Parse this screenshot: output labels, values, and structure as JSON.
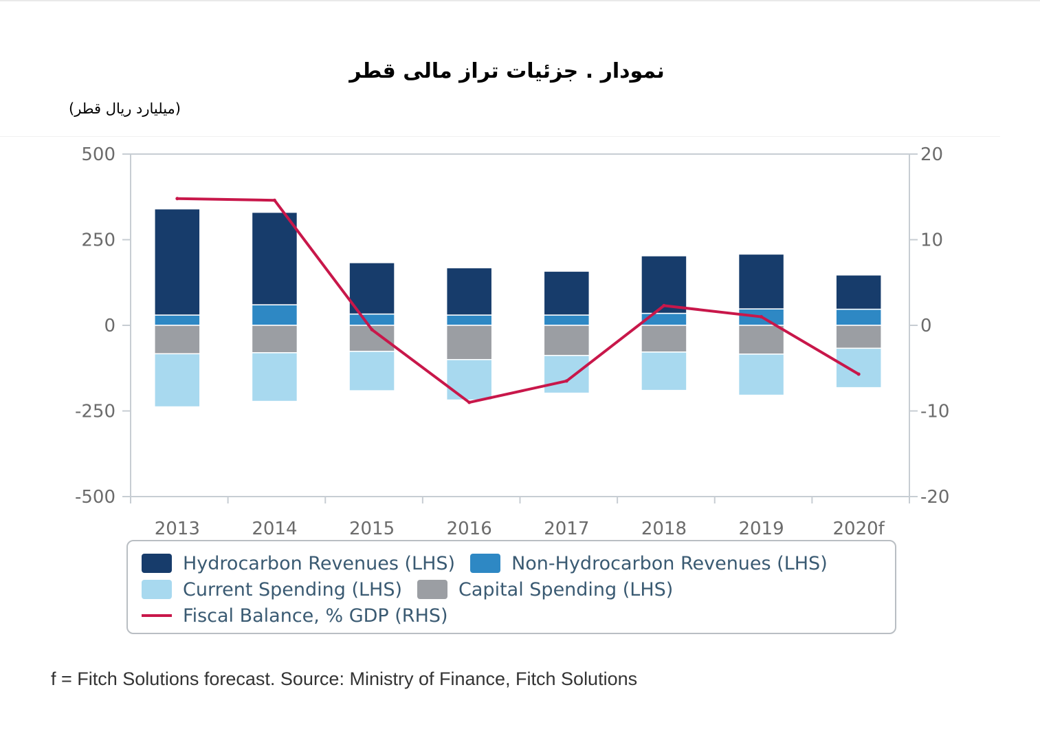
{
  "title": "نمودار   . جزئیات تراز مالی قطر",
  "unit_label": "(میلیارد ریال قطر)",
  "source_note": "f = Fitch Solutions forecast. Source: Ministry of Finance, Fitch Solutions",
  "colors": {
    "hydrocarbon": "#173c6b",
    "non_hydrocarbon": "#2e88c4",
    "current_spending": "#a8d9ef",
    "capital_spending": "#9b9ea3",
    "fiscal_balance": "#c8174a",
    "axis": "#c7cdd3",
    "tick_text": "#6b6b6b"
  },
  "chart_data": {
    "type": "bar",
    "stacked": true,
    "categories": [
      "2013",
      "2014",
      "2015",
      "2016",
      "2017",
      "2018",
      "2019",
      "2020f"
    ],
    "y_left": {
      "min": -500,
      "max": 500,
      "ticks": [
        "500",
        "250",
        "0",
        "-250",
        "-500"
      ],
      "tick_values": [
        500,
        250,
        0,
        -250,
        -500
      ]
    },
    "y_right": {
      "min": -20,
      "max": 20,
      "ticks": [
        "20",
        "10",
        "0",
        "-10",
        "-20"
      ],
      "tick_values": [
        20,
        10,
        0,
        -10,
        -20
      ]
    },
    "series": [
      {
        "name": "Hydrocarbon Revenues (LHS)",
        "key": "hydrocarbon",
        "axis": "left",
        "kind": "bar",
        "values": [
          310,
          270,
          150,
          138,
          128,
          168,
          160,
          100
        ]
      },
      {
        "name": "Non-Hydrocarbon Revenues (LHS)",
        "key": "non_hydrocarbon",
        "axis": "left",
        "kind": "bar",
        "values": [
          30,
          60,
          33,
          30,
          30,
          35,
          48,
          47
        ]
      },
      {
        "name": "Capital Spending (LHS)",
        "key": "capital_spending",
        "axis": "left",
        "kind": "bar",
        "values": [
          -83,
          -80,
          -76,
          -100,
          -88,
          -78,
          -84,
          -67
        ]
      },
      {
        "name": "Current Spending (LHS)",
        "key": "current_spending",
        "axis": "left",
        "kind": "bar",
        "values": [
          -155,
          -142,
          -115,
          -118,
          -110,
          -112,
          -120,
          -115
        ]
      },
      {
        "name": "Fiscal Balance, % GDP (RHS)",
        "key": "fiscal_balance",
        "axis": "right",
        "kind": "line",
        "values": [
          14.8,
          14.6,
          -0.5,
          -9.0,
          -6.5,
          2.3,
          1.0,
          -5.7
        ]
      }
    ]
  },
  "legend": {
    "row1": [
      {
        "label": "Hydrocarbon Revenues (LHS)",
        "key": "hydrocarbon"
      },
      {
        "label": "Non-Hydrocarbon Revenues (LHS)",
        "key": "non_hydrocarbon"
      }
    ],
    "row2": [
      {
        "label": "Current Spending (LHS)",
        "key": "current_spending"
      },
      {
        "label": "Capital Spending (LHS)",
        "key": "capital_spending"
      }
    ],
    "row3": [
      {
        "label": "Fiscal Balance, % GDP (RHS)",
        "key": "fiscal_balance"
      }
    ]
  }
}
